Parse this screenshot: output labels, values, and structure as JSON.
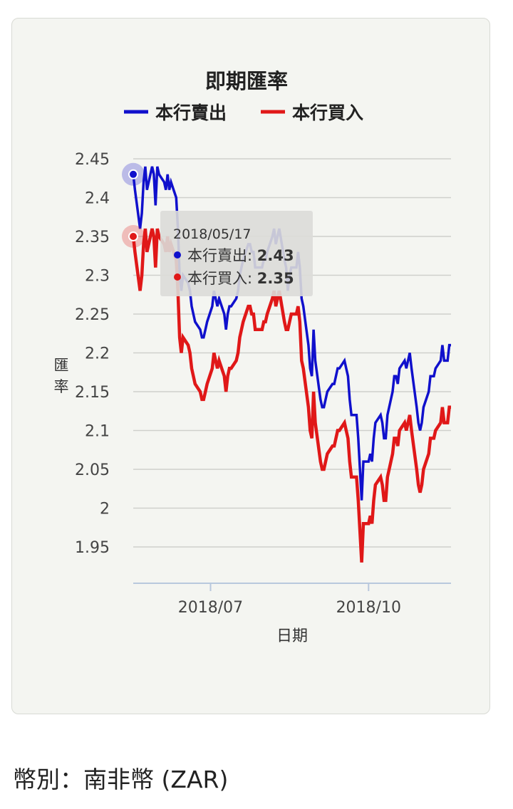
{
  "currency": {
    "label": "幣別：南非幣 (ZAR)"
  },
  "chart_data": {
    "type": "line",
    "title": "即期匯率",
    "xlabel": "日期",
    "ylabel": "匯率",
    "ylim": [
      1.9,
      2.45
    ],
    "yticks": [
      2.45,
      2.4,
      2.35,
      2.3,
      2.25,
      2.2,
      2.15,
      2.1,
      2.05,
      2.0,
      1.95
    ],
    "ytick_labels": [
      "2.45",
      "2.4",
      "2.35",
      "2.3",
      "2.25",
      "2.2",
      "2.15",
      "2.1",
      "2.05",
      "2",
      "1.95"
    ],
    "xlim": [
      "2018-05-17",
      "2018-11-18"
    ],
    "xticks": [
      {
        "date": "2018-07-01",
        "label": "2018/07"
      },
      {
        "date": "2018-10-01",
        "label": "2018/10"
      }
    ],
    "legend_position": "top",
    "grid": true,
    "series": [
      {
        "name": "本行賣出",
        "color": "#1010cc",
        "points": [
          [
            "2018-05-17",
            2.43
          ],
          [
            "2018-05-18",
            2.41
          ],
          [
            "2018-05-21",
            2.36
          ],
          [
            "2018-05-22",
            2.38
          ],
          [
            "2018-05-23",
            2.42
          ],
          [
            "2018-05-24",
            2.44
          ],
          [
            "2018-05-25",
            2.41
          ],
          [
            "2018-05-28",
            2.44
          ],
          [
            "2018-05-29",
            2.43
          ],
          [
            "2018-05-30",
            2.39
          ],
          [
            "2018-05-31",
            2.44
          ],
          [
            "2018-06-01",
            2.43
          ],
          [
            "2018-06-04",
            2.42
          ],
          [
            "2018-06-05",
            2.41
          ],
          [
            "2018-06-06",
            2.43
          ],
          [
            "2018-06-07",
            2.41
          ],
          [
            "2018-06-08",
            2.42
          ],
          [
            "2018-06-11",
            2.4
          ],
          [
            "2018-06-12",
            2.36
          ],
          [
            "2018-06-13",
            2.3
          ],
          [
            "2018-06-14",
            2.28
          ],
          [
            "2018-06-15",
            2.3
          ],
          [
            "2018-06-18",
            2.29
          ],
          [
            "2018-06-19",
            2.28
          ],
          [
            "2018-06-20",
            2.26
          ],
          [
            "2018-06-21",
            2.25
          ],
          [
            "2018-06-22",
            2.24
          ],
          [
            "2018-06-25",
            2.23
          ],
          [
            "2018-06-26",
            2.22
          ],
          [
            "2018-06-27",
            2.22
          ],
          [
            "2018-06-28",
            2.23
          ],
          [
            "2018-06-29",
            2.24
          ],
          [
            "2018-07-02",
            2.26
          ],
          [
            "2018-07-03",
            2.28
          ],
          [
            "2018-07-04",
            2.27
          ],
          [
            "2018-07-05",
            2.26
          ],
          [
            "2018-07-06",
            2.27
          ],
          [
            "2018-07-09",
            2.25
          ],
          [
            "2018-07-10",
            2.23
          ],
          [
            "2018-07-11",
            2.25
          ],
          [
            "2018-07-12",
            2.26
          ],
          [
            "2018-07-13",
            2.26
          ],
          [
            "2018-07-16",
            2.27
          ],
          [
            "2018-07-17",
            2.28
          ],
          [
            "2018-07-18",
            2.3
          ],
          [
            "2018-07-19",
            2.31
          ],
          [
            "2018-07-20",
            2.32
          ],
          [
            "2018-07-23",
            2.34
          ],
          [
            "2018-07-24",
            2.34
          ],
          [
            "2018-07-25",
            2.33
          ],
          [
            "2018-07-26",
            2.33
          ],
          [
            "2018-07-27",
            2.31
          ],
          [
            "2018-07-30",
            2.31
          ],
          [
            "2018-07-31",
            2.31
          ],
          [
            "2018-08-01",
            2.32
          ],
          [
            "2018-08-02",
            2.32
          ],
          [
            "2018-08-03",
            2.33
          ],
          [
            "2018-08-06",
            2.35
          ],
          [
            "2018-08-07",
            2.36
          ],
          [
            "2018-08-08",
            2.34
          ],
          [
            "2018-08-09",
            2.35
          ],
          [
            "2018-08-10",
            2.36
          ],
          [
            "2018-08-13",
            2.32
          ],
          [
            "2018-08-14",
            2.31
          ],
          [
            "2018-08-15",
            2.28
          ],
          [
            "2018-08-16",
            2.3
          ],
          [
            "2018-08-17",
            2.31
          ],
          [
            "2018-08-20",
            2.31
          ],
          [
            "2018-08-21",
            2.33
          ],
          [
            "2018-08-22",
            2.31
          ],
          [
            "2018-08-23",
            2.27
          ],
          [
            "2018-08-24",
            2.26
          ],
          [
            "2018-08-27",
            2.21
          ],
          [
            "2018-08-28",
            2.18
          ],
          [
            "2018-08-29",
            2.17
          ],
          [
            "2018-08-30",
            2.23
          ],
          [
            "2018-08-31",
            2.19
          ],
          [
            "2018-09-03",
            2.14
          ],
          [
            "2018-09-04",
            2.13
          ],
          [
            "2018-09-05",
            2.13
          ],
          [
            "2018-09-06",
            2.14
          ],
          [
            "2018-09-07",
            2.15
          ],
          [
            "2018-09-10",
            2.16
          ],
          [
            "2018-09-11",
            2.16
          ],
          [
            "2018-09-12",
            2.17
          ],
          [
            "2018-09-13",
            2.18
          ],
          [
            "2018-09-14",
            2.18
          ],
          [
            "2018-09-17",
            2.19
          ],
          [
            "2018-09-18",
            2.18
          ],
          [
            "2018-09-19",
            2.17
          ],
          [
            "2018-09-20",
            2.14
          ],
          [
            "2018-09-21",
            2.12
          ],
          [
            "2018-09-24",
            2.12
          ],
          [
            "2018-09-25",
            2.09
          ],
          [
            "2018-09-26",
            2.05
          ],
          [
            "2018-09-27",
            2.01
          ],
          [
            "2018-09-28",
            2.06
          ],
          [
            "2018-10-01",
            2.06
          ],
          [
            "2018-10-02",
            2.07
          ],
          [
            "2018-10-03",
            2.06
          ],
          [
            "2018-10-04",
            2.09
          ],
          [
            "2018-10-05",
            2.11
          ],
          [
            "2018-10-08",
            2.12
          ],
          [
            "2018-10-09",
            2.11
          ],
          [
            "2018-10-10",
            2.09
          ],
          [
            "2018-10-11",
            2.09
          ],
          [
            "2018-10-12",
            2.12
          ],
          [
            "2018-10-15",
            2.15
          ],
          [
            "2018-10-16",
            2.17
          ],
          [
            "2018-10-17",
            2.17
          ],
          [
            "2018-10-18",
            2.16
          ],
          [
            "2018-10-19",
            2.18
          ],
          [
            "2018-10-22",
            2.19
          ],
          [
            "2018-10-23",
            2.18
          ],
          [
            "2018-10-24",
            2.19
          ],
          [
            "2018-10-25",
            2.2
          ],
          [
            "2018-10-26",
            2.18
          ],
          [
            "2018-10-29",
            2.13
          ],
          [
            "2018-10-30",
            2.11
          ],
          [
            "2018-10-31",
            2.1
          ],
          [
            "2018-11-01",
            2.11
          ],
          [
            "2018-11-02",
            2.13
          ],
          [
            "2018-11-05",
            2.15
          ],
          [
            "2018-11-06",
            2.17
          ],
          [
            "2018-11-07",
            2.17
          ],
          [
            "2018-11-08",
            2.17
          ],
          [
            "2018-11-09",
            2.18
          ],
          [
            "2018-11-12",
            2.19
          ],
          [
            "2018-11-13",
            2.21
          ],
          [
            "2018-11-14",
            2.19
          ],
          [
            "2018-11-15",
            2.19
          ],
          [
            "2018-11-16",
            2.19
          ],
          [
            "2018-11-17",
            2.21
          ],
          [
            "2018-11-18",
            2.21
          ]
        ]
      },
      {
        "name": "本行買入",
        "color": "#e01818",
        "points": [
          [
            "2018-05-17",
            2.35
          ],
          [
            "2018-05-18",
            2.33
          ],
          [
            "2018-05-21",
            2.28
          ],
          [
            "2018-05-22",
            2.3
          ],
          [
            "2018-05-23",
            2.34
          ],
          [
            "2018-05-24",
            2.36
          ],
          [
            "2018-05-25",
            2.33
          ],
          [
            "2018-05-28",
            2.36
          ],
          [
            "2018-05-29",
            2.35
          ],
          [
            "2018-05-30",
            2.31
          ],
          [
            "2018-05-31",
            2.36
          ],
          [
            "2018-06-01",
            2.35
          ],
          [
            "2018-06-04",
            2.34
          ],
          [
            "2018-06-05",
            2.33
          ],
          [
            "2018-06-06",
            2.35
          ],
          [
            "2018-06-07",
            2.33
          ],
          [
            "2018-06-08",
            2.34
          ],
          [
            "2018-06-11",
            2.32
          ],
          [
            "2018-06-12",
            2.28
          ],
          [
            "2018-06-13",
            2.22
          ],
          [
            "2018-06-14",
            2.2
          ],
          [
            "2018-06-15",
            2.22
          ],
          [
            "2018-06-18",
            2.21
          ],
          [
            "2018-06-19",
            2.2
          ],
          [
            "2018-06-20",
            2.18
          ],
          [
            "2018-06-21",
            2.17
          ],
          [
            "2018-06-22",
            2.16
          ],
          [
            "2018-06-25",
            2.15
          ],
          [
            "2018-06-26",
            2.14
          ],
          [
            "2018-06-27",
            2.14
          ],
          [
            "2018-06-28",
            2.15
          ],
          [
            "2018-06-29",
            2.16
          ],
          [
            "2018-07-02",
            2.18
          ],
          [
            "2018-07-03",
            2.2
          ],
          [
            "2018-07-04",
            2.19
          ],
          [
            "2018-07-05",
            2.18
          ],
          [
            "2018-07-06",
            2.19
          ],
          [
            "2018-07-09",
            2.17
          ],
          [
            "2018-07-10",
            2.15
          ],
          [
            "2018-07-11",
            2.17
          ],
          [
            "2018-07-12",
            2.18
          ],
          [
            "2018-07-13",
            2.18
          ],
          [
            "2018-07-16",
            2.19
          ],
          [
            "2018-07-17",
            2.2
          ],
          [
            "2018-07-18",
            2.22
          ],
          [
            "2018-07-19",
            2.23
          ],
          [
            "2018-07-20",
            2.24
          ],
          [
            "2018-07-23",
            2.26
          ],
          [
            "2018-07-24",
            2.26
          ],
          [
            "2018-07-25",
            2.25
          ],
          [
            "2018-07-26",
            2.25
          ],
          [
            "2018-07-27",
            2.23
          ],
          [
            "2018-07-30",
            2.23
          ],
          [
            "2018-07-31",
            2.23
          ],
          [
            "2018-08-01",
            2.24
          ],
          [
            "2018-08-02",
            2.24
          ],
          [
            "2018-08-03",
            2.25
          ],
          [
            "2018-08-06",
            2.27
          ],
          [
            "2018-08-07",
            2.28
          ],
          [
            "2018-08-08",
            2.26
          ],
          [
            "2018-08-09",
            2.27
          ],
          [
            "2018-08-10",
            2.28
          ],
          [
            "2018-08-13",
            2.24
          ],
          [
            "2018-08-14",
            2.23
          ],
          [
            "2018-08-15",
            2.23
          ],
          [
            "2018-08-16",
            2.24
          ],
          [
            "2018-08-17",
            2.25
          ],
          [
            "2018-08-20",
            2.25
          ],
          [
            "2018-08-21",
            2.26
          ],
          [
            "2018-08-22",
            2.24
          ],
          [
            "2018-08-23",
            2.19
          ],
          [
            "2018-08-24",
            2.18
          ],
          [
            "2018-08-27",
            2.13
          ],
          [
            "2018-08-28",
            2.1
          ],
          [
            "2018-08-29",
            2.09
          ],
          [
            "2018-08-30",
            2.15
          ],
          [
            "2018-08-31",
            2.11
          ],
          [
            "2018-09-03",
            2.06
          ],
          [
            "2018-09-04",
            2.05
          ],
          [
            "2018-09-05",
            2.05
          ],
          [
            "2018-09-06",
            2.06
          ],
          [
            "2018-09-07",
            2.07
          ],
          [
            "2018-09-10",
            2.08
          ],
          [
            "2018-09-11",
            2.08
          ],
          [
            "2018-09-12",
            2.09
          ],
          [
            "2018-09-13",
            2.1
          ],
          [
            "2018-09-14",
            2.1
          ],
          [
            "2018-09-17",
            2.11
          ],
          [
            "2018-09-18",
            2.1
          ],
          [
            "2018-09-19",
            2.09
          ],
          [
            "2018-09-20",
            2.06
          ],
          [
            "2018-09-21",
            2.04
          ],
          [
            "2018-09-24",
            2.04
          ],
          [
            "2018-09-25",
            2.01
          ],
          [
            "2018-09-26",
            1.97
          ],
          [
            "2018-09-27",
            1.93
          ],
          [
            "2018-09-28",
            1.98
          ],
          [
            "2018-10-01",
            1.98
          ],
          [
            "2018-10-02",
            1.99
          ],
          [
            "2018-10-03",
            1.98
          ],
          [
            "2018-10-04",
            2.01
          ],
          [
            "2018-10-05",
            2.03
          ],
          [
            "2018-10-08",
            2.04
          ],
          [
            "2018-10-09",
            2.03
          ],
          [
            "2018-10-10",
            2.01
          ],
          [
            "2018-10-11",
            2.01
          ],
          [
            "2018-10-12",
            2.04
          ],
          [
            "2018-10-15",
            2.07
          ],
          [
            "2018-10-16",
            2.09
          ],
          [
            "2018-10-17",
            2.09
          ],
          [
            "2018-10-18",
            2.08
          ],
          [
            "2018-10-19",
            2.1
          ],
          [
            "2018-10-22",
            2.11
          ],
          [
            "2018-10-23",
            2.1
          ],
          [
            "2018-10-24",
            2.11
          ],
          [
            "2018-10-25",
            2.12
          ],
          [
            "2018-10-26",
            2.1
          ],
          [
            "2018-10-29",
            2.05
          ],
          [
            "2018-10-30",
            2.03
          ],
          [
            "2018-10-31",
            2.02
          ],
          [
            "2018-11-01",
            2.03
          ],
          [
            "2018-11-02",
            2.05
          ],
          [
            "2018-11-05",
            2.07
          ],
          [
            "2018-11-06",
            2.09
          ],
          [
            "2018-11-07",
            2.09
          ],
          [
            "2018-11-08",
            2.09
          ],
          [
            "2018-11-09",
            2.1
          ],
          [
            "2018-11-12",
            2.11
          ],
          [
            "2018-11-13",
            2.13
          ],
          [
            "2018-11-14",
            2.11
          ],
          [
            "2018-11-15",
            2.11
          ],
          [
            "2018-11-16",
            2.11
          ],
          [
            "2018-11-17",
            2.13
          ],
          [
            "2018-11-18",
            2.13
          ]
        ]
      }
    ],
    "tooltip": {
      "date": "2018/05/17",
      "items": [
        {
          "name": "本行賣出",
          "value": "2.43",
          "color": "#1010cc"
        },
        {
          "name": "本行買入",
          "value": "2.35",
          "color": "#e01818"
        }
      ]
    }
  }
}
